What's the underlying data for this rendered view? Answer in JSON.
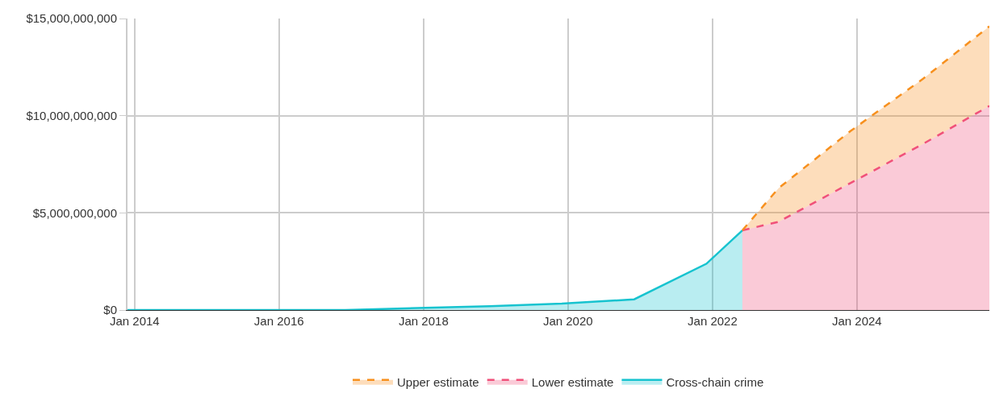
{
  "chart_data": {
    "type": "area",
    "xlim": [
      "2013-11-26",
      "2025-11"
    ],
    "xticks": [
      {
        "value": "2014-01",
        "label": "Jan 2014"
      },
      {
        "value": "2016-01",
        "label": "Jan 2016"
      },
      {
        "value": "2018-01",
        "label": "Jan 2018"
      },
      {
        "value": "2020-01",
        "label": "Jan 2020"
      },
      {
        "value": "2022-01",
        "label": "Jan 2022"
      },
      {
        "value": "2024-01",
        "label": "Jan 2024"
      }
    ],
    "ylim": [
      0,
      15000000000
    ],
    "yticks": [
      {
        "value": 0,
        "label": "$0"
      },
      {
        "value": 5000000000,
        "label": "$5,000,000,000"
      },
      {
        "value": 10000000000,
        "label": "$10,000,000,000"
      },
      {
        "value": 15000000000,
        "label": "$15,000,000,000"
      }
    ],
    "grid": true,
    "legend": "bottom",
    "series": [
      {
        "name": "Cross-chain crime",
        "color": "#17c3cf",
        "line_style": "solid",
        "x": [
          "2013-11-26",
          "2014-12",
          "2015-12",
          "2016-12",
          "2017-12",
          "2018-12",
          "2019-12",
          "2020-12",
          "2021-12",
          "2022-06"
        ],
        "values": [
          0,
          0,
          0,
          0,
          100000000,
          200000000,
          330000000,
          550000000,
          2380000000,
          4100000000
        ]
      },
      {
        "name": "Lower estimate",
        "color": "#f0517a",
        "line_style": "dashed",
        "x": [
          "2022-06",
          "2022-12",
          "2023-12",
          "2024-12",
          "2025-11"
        ],
        "values": [
          4100000000,
          4540000000,
          6540000000,
          8550000000,
          10500000000
        ]
      },
      {
        "name": "Upper estimate",
        "color": "#f7901e",
        "line_style": "dashed",
        "x": [
          "2022-06",
          "2022-12",
          "2023-12",
          "2024-12",
          "2025-11"
        ],
        "values": [
          4100000000,
          6270000000,
          9220000000,
          11900000000,
          14600000000
        ]
      }
    ]
  }
}
